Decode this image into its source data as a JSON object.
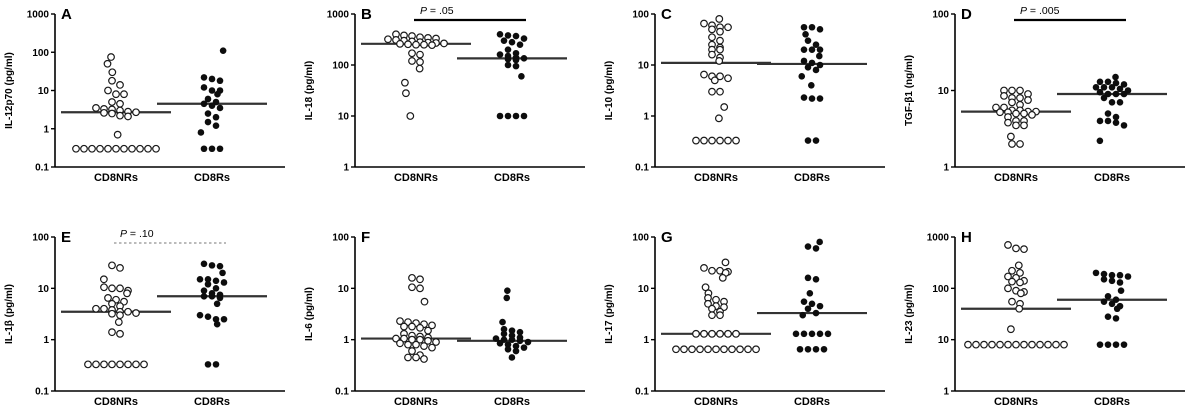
{
  "figure": {
    "background": "#ffffff",
    "ink": "#000000",
    "median_color": "#333333",
    "x_categories": [
      "CD8NRs",
      "CD8Rs"
    ]
  },
  "chart_data": {
    "type": "scatter",
    "scale": "log-y",
    "x_categories": [
      "CD8NRs",
      "CD8Rs"
    ],
    "marker_legend": {
      "CD8NRs": "open-circle",
      "CD8Rs": "filled-circle"
    },
    "panels": [
      {
        "label": "A",
        "ylabel": "IL-12p70 (pg/ml)",
        "ylim": [
          0.1,
          1000
        ],
        "yticks": [
          "0.1",
          "1",
          "10",
          "100",
          "1000"
        ],
        "p": null,
        "series": [
          {
            "name": "CD8NRs",
            "marker": "open",
            "median": 2.7,
            "values": [
              75,
              50,
              30,
              18,
              14,
              10,
              8,
              8,
              5,
              4.5,
              3.5,
              3.3,
              3.2,
              3,
              2.8,
              2.7,
              2.6,
              2.5,
              2.2,
              2.1,
              0.7,
              0.3,
              0.3,
              0.3,
              0.3,
              0.3,
              0.3,
              0.3,
              0.3,
              0.3,
              0.3,
              0.3
            ]
          },
          {
            "name": "CD8Rs",
            "marker": "filled",
            "median": 4.5,
            "values": [
              110,
              22,
              20,
              18,
              12,
              10,
              10,
              8,
              6,
              5,
              4.5,
              4,
              3.5,
              2.5,
              2,
              1.5,
              1.2,
              0.8,
              0.3,
              0.3,
              0.3
            ]
          }
        ]
      },
      {
        "label": "B",
        "ylabel": "IL-18 (pg/ml)",
        "ylim": [
          1,
          1000
        ],
        "yticks": [
          "1",
          "10",
          "100",
          "1000"
        ],
        "p": {
          "label": "P = .05",
          "style": "solid"
        },
        "series": [
          {
            "name": "CD8NRs",
            "marker": "open",
            "median": 260,
            "values": [
              400,
              380,
              370,
              350,
              340,
              330,
              320,
              310,
              300,
              290,
              280,
              275,
              270,
              265,
              260,
              255,
              250,
              250,
              245,
              170,
              160,
              120,
              115,
              85,
              45,
              28,
              10
            ]
          },
          {
            "name": "CD8Rs",
            "marker": "filled",
            "median": 135,
            "values": [
              400,
              380,
              370,
              330,
              300,
              280,
              250,
              200,
              170,
              160,
              150,
              140,
              135,
              130,
              125,
              100,
              95,
              60,
              10,
              10,
              10,
              10
            ]
          }
        ]
      },
      {
        "label": "C",
        "ylabel": "IL-10 (pg/ml)",
        "ylim": [
          0.1,
          100
        ],
        "yticks": [
          "0.1",
          "1",
          "10",
          "100"
        ],
        "p": null,
        "series": [
          {
            "name": "CD8NRs",
            "marker": "open",
            "median": 11,
            "values": [
              80,
              65,
              60,
              55,
              55,
              50,
              45,
              35,
              30,
              25,
              22,
              20,
              20,
              16,
              14,
              12,
              6.5,
              6,
              6,
              5.5,
              5,
              3,
              3,
              1.5,
              0.9,
              0.33,
              0.33,
              0.33,
              0.33,
              0.33,
              0.33
            ]
          },
          {
            "name": "CD8Rs",
            "marker": "filled",
            "median": 10.5,
            "values": [
              55,
              55,
              50,
              40,
              30,
              25,
              20,
              20,
              20,
              15,
              12,
              11,
              10,
              9,
              8,
              6,
              4,
              2.3,
              2.2,
              2.2,
              0.33,
              0.33
            ]
          }
        ]
      },
      {
        "label": "D",
        "ylabel": "TGF-β1 (ng/ml)",
        "ylim": [
          1,
          100
        ],
        "yticks": [
          "1",
          "10",
          "100"
        ],
        "p": {
          "label": "P = .005",
          "style": "solid"
        },
        "series": [
          {
            "name": "CD8NRs",
            "marker": "open",
            "median": 5.3,
            "values": [
              10,
              10,
              10,
              9,
              8.5,
              8,
              8,
              7.5,
              7,
              6.5,
              6,
              6,
              5.5,
              5.5,
              5.3,
              5.3,
              5.2,
              5.2,
              5,
              5,
              4.8,
              4.5,
              4,
              4,
              3.8,
              3.5,
              3.5,
              2.5,
              2,
              2
            ]
          },
          {
            "name": "CD8Rs",
            "marker": "filled",
            "median": 9,
            "values": [
              15,
              13,
              13,
              12.5,
              12,
              11,
              11,
              11,
              10.5,
              10,
              9.5,
              9,
              9,
              9,
              8,
              7,
              7,
              5,
              4.5,
              4,
              4,
              3.8,
              3.5,
              2.2
            ]
          }
        ]
      },
      {
        "label": "E",
        "ylabel": "IL-1β (pg/ml)",
        "ylim": [
          0.1,
          100
        ],
        "yticks": [
          "0.1",
          "1",
          "10",
          "100"
        ],
        "p": {
          "label": "P = .10",
          "style": "dotted"
        },
        "series": [
          {
            "name": "CD8NRs",
            "marker": "open",
            "median": 3.5,
            "values": [
              28,
              25,
              15,
              10.5,
              10,
              10,
              9,
              8,
              6.5,
              6,
              5.5,
              5,
              4.5,
              4,
              4,
              3.8,
              3.5,
              3.5,
              3.3,
              3.2,
              3,
              2.2,
              1.4,
              1.3,
              0.33,
              0.33,
              0.33,
              0.33,
              0.33,
              0.33,
              0.33,
              0.33
            ]
          },
          {
            "name": "CD8Rs",
            "marker": "filled",
            "median": 7,
            "values": [
              30,
              28,
              27,
              20,
              15,
              15,
              14,
              13,
              12,
              10,
              9,
              8,
              7.5,
              7,
              7,
              6.5,
              5,
              3,
              2.8,
              2.5,
              2.5,
              2,
              0.33,
              0.33
            ]
          }
        ]
      },
      {
        "label": "F",
        "ylabel": "IL-6 (pg/ml)",
        "ylim": [
          0.1,
          100
        ],
        "yticks": [
          "0.1",
          "1",
          "10",
          "100"
        ],
        "p": null,
        "series": [
          {
            "name": "CD8NRs",
            "marker": "open",
            "median": 1.05,
            "values": [
              16,
              15,
              10.5,
              10,
              5.5,
              2.3,
              2.2,
              2.1,
              2,
              1.9,
              1.8,
              1.8,
              1.7,
              1.5,
              1.3,
              1.2,
              1.15,
              1.1,
              1.05,
              1.05,
              1,
              1,
              0.95,
              0.9,
              0.85,
              0.8,
              0.8,
              0.75,
              0.7,
              0.6,
              0.5,
              0.45,
              0.45,
              0.42
            ]
          },
          {
            "name": "CD8Rs",
            "marker": "filled",
            "median": 0.95,
            "values": [
              9,
              6.5,
              2.2,
              1.6,
              1.5,
              1.4,
              1.3,
              1.2,
              1.1,
              1.05,
              1,
              1,
              0.95,
              0.9,
              0.85,
              0.8,
              0.75,
              0.7,
              0.65,
              0.6,
              0.45
            ]
          }
        ]
      },
      {
        "label": "G",
        "ylabel": "IL-17 (pg/ml)",
        "ylim": [
          0.1,
          100
        ],
        "yticks": [
          "0.1",
          "1",
          "10",
          "100"
        ],
        "p": null,
        "series": [
          {
            "name": "CD8NRs",
            "marker": "open",
            "median": 1.3,
            "values": [
              32,
              25,
              22,
              22,
              21,
              20,
              16,
              10.5,
              8,
              6.5,
              6,
              5.5,
              5,
              4.5,
              4.3,
              4,
              3.5,
              3,
              3,
              1.3,
              1.3,
              1.3,
              1.3,
              1.3,
              1.3,
              0.65,
              0.65,
              0.65,
              0.65,
              0.65,
              0.65,
              0.65,
              0.65,
              0.65,
              0.65,
              0.65
            ]
          },
          {
            "name": "CD8Rs",
            "marker": "filled",
            "median": 3.3,
            "values": [
              80,
              65,
              60,
              16,
              15,
              8,
              5.5,
              5,
              4.5,
              4,
              3.3,
              3,
              1.3,
              1.3,
              1.3,
              1.3,
              1.3,
              0.65,
              0.65,
              0.65,
              0.65
            ]
          }
        ]
      },
      {
        "label": "H",
        "ylabel": "IL-23 (pg/ml)",
        "ylim": [
          1,
          1000
        ],
        "yticks": [
          "1",
          "10",
          "100",
          "1000"
        ],
        "p": null,
        "series": [
          {
            "name": "CD8NRs",
            "marker": "open",
            "median": 40,
            "values": [
              700,
              600,
              580,
              280,
              220,
              200,
              170,
              160,
              140,
              135,
              130,
              100,
              90,
              85,
              80,
              55,
              50,
              40,
              16,
              8,
              8,
              8,
              8,
              8,
              8,
              8,
              8,
              8,
              8,
              8,
              8,
              8
            ]
          },
          {
            "name": "CD8Rs",
            "marker": "filled",
            "median": 60,
            "values": [
              200,
              190,
              180,
              180,
              170,
              150,
              140,
              130,
              90,
              70,
              60,
              55,
              50,
              45,
              40,
              28,
              26,
              8,
              8,
              8,
              8
            ]
          }
        ]
      }
    ]
  }
}
